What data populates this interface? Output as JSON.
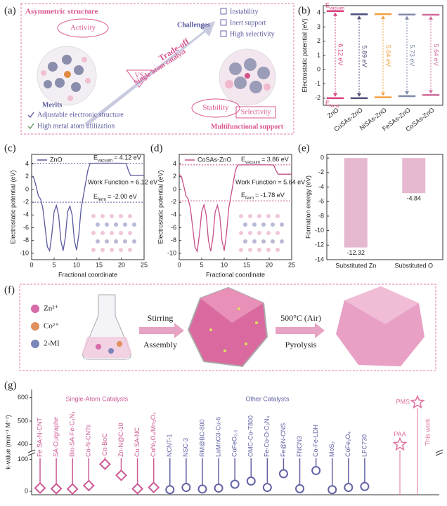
{
  "panels": {
    "a": {
      "label": "(a)",
      "heading": "Asymmetric structure",
      "activity": "Activity",
      "vs": "VS",
      "tradeoff": "Trade-off",
      "catalyst": "Single atom catalyst",
      "challenges_title": "Challenges",
      "challenges": [
        "Instability",
        "Inert support",
        "High selectivity"
      ],
      "stability": "Stability",
      "selectivity": "Selectivity",
      "merits_title": "Merits",
      "merits": [
        "Adjustable electronic structure",
        "High metal atom utilization"
      ],
      "support": "Multifunctional support"
    },
    "f": {
      "label": "(f)",
      "ions": [
        "Zn²⁺",
        "Co²⁺",
        "2-MI"
      ],
      "step1": [
        "Stirring",
        "Assembly"
      ],
      "step2": [
        "500°C (Air)",
        "Pyrolysis"
      ]
    }
  },
  "chart_data": [
    {
      "type": "level",
      "panel_label": "(b)",
      "y_label": "Electrostatic potential (eV)",
      "categories": [
        "ZnO",
        "CuSAs-ZnO",
        "NiSAs-ZnO",
        "FeSAs-ZnO",
        "CoSAs-ZnO"
      ],
      "colors": [
        "#d8407e",
        "#4d4d7a",
        "#f0a040",
        "#7e8aa8",
        "#d06a9c"
      ],
      "vacuum_level": [
        4.12,
        3.89,
        3.9,
        3.87,
        3.86
      ],
      "fermi_level": [
        -2.0,
        -2.0,
        -1.94,
        -1.86,
        -1.78
      ],
      "work_function": {
        "values": [
          6.12,
          5.89,
          5.84,
          5.73,
          5.64
        ],
        "value_labels": [
          "6.12 eV",
          "5.89 eV",
          "5.84 eV",
          "5.73 eV",
          "5.64 eV"
        ]
      },
      "level_labels": {
        "vacuum": {
          "symbol": "E",
          "sub": "vacuum"
        },
        "fermi": {
          "symbol": "E",
          "sub": "fermi"
        }
      },
      "ylim": [
        -2.5,
        4.5
      ],
      "yticks": [
        -2,
        -1,
        0,
        1,
        2,
        3,
        4
      ]
    },
    {
      "type": "line",
      "panel_label": "(c)",
      "x_label": "Fractional coordinate",
      "y_label": "Electrostatic potential (eV)",
      "x": [
        0,
        0.5,
        1,
        1.5,
        2,
        2.5,
        3,
        3.5,
        4,
        4.5,
        5,
        5.5,
        6,
        6.5,
        7,
        7.5,
        8,
        8.5,
        9,
        9.5,
        10,
        10.5,
        11,
        11.5,
        12,
        12.5,
        13,
        14,
        15,
        16,
        17,
        18,
        19,
        20,
        21,
        21.5,
        22,
        23,
        24,
        25
      ],
      "series": [
        {
          "name": "ZnO",
          "color": "#5a5a9e",
          "values": [
            2.2,
            1.8,
            0.5,
            -1,
            -1.5,
            -3,
            -6,
            -9,
            -9.6,
            -7,
            -3.5,
            -2.5,
            -4,
            -8,
            -9.6,
            -7.5,
            -3.5,
            -2.6,
            -4,
            -8,
            -9.5,
            -7,
            -3,
            -1,
            1,
            3,
            4.1,
            4.12,
            4.12,
            4.12,
            4.12,
            4.12,
            4.12,
            4.12,
            4.1,
            3,
            2.2,
            2.2,
            2.2,
            2.2
          ]
        }
      ],
      "reference_lines": [
        4.12,
        -2.0
      ],
      "annotations": [
        {
          "symbol": "E",
          "sub": "vacuum",
          "text": "= 4.12 eV"
        },
        {
          "text": "Work Function = 6.12 eV"
        },
        {
          "symbol": "E",
          "sub": "ferm",
          "text": "= -2.00 eV"
        }
      ],
      "xlim": [
        0,
        25
      ],
      "xticks": [
        0,
        5,
        10,
        15,
        20,
        25
      ],
      "ylim": [
        -11,
        5.5
      ],
      "yticks": [
        -10,
        -8,
        -6,
        -4,
        -2,
        0,
        2,
        4
      ]
    },
    {
      "type": "line",
      "panel_label": "(d)",
      "x_label": "Fractional coordinate",
      "y_label": "Electrostatic potential (eV)",
      "x": [
        0,
        0.5,
        1,
        1.5,
        2,
        2.5,
        3,
        3.5,
        4,
        4.5,
        5,
        5.5,
        6,
        6.5,
        7,
        7.5,
        8,
        8.5,
        9,
        9.5,
        10,
        10.5,
        11,
        11.5,
        12,
        12.5,
        13,
        14,
        15,
        16,
        17,
        18,
        19,
        20,
        21,
        21.5,
        22,
        23,
        24,
        25
      ],
      "series": [
        {
          "name": "CoSAs-ZnO",
          "color": "#c8508a",
          "values": [
            2.4,
            2.0,
            0.6,
            -1,
            -1.5,
            -3,
            -6,
            -9,
            -9.7,
            -7,
            -3.5,
            -2.4,
            -4,
            -8,
            -9.7,
            -7.5,
            -3.5,
            -2.5,
            -4,
            -8,
            -9.6,
            -7,
            -3,
            -1,
            1,
            3,
            3.84,
            3.86,
            3.86,
            3.86,
            3.86,
            3.86,
            3.86,
            3.86,
            3.84,
            3,
            2.4,
            2.4,
            2.4,
            2.4
          ]
        }
      ],
      "reference_lines": [
        3.86,
        -1.78
      ],
      "annotations": [
        {
          "symbol": "E",
          "sub": "vacuum",
          "text": "= 3.86 eV"
        },
        {
          "text": "Work Function = 5.64 eV"
        },
        {
          "symbol": "E",
          "sub": "ferm",
          "text": "= -1.78 eV"
        }
      ],
      "xlim": [
        0,
        25
      ],
      "xticks": [
        0,
        5,
        10,
        15,
        20,
        25
      ],
      "ylim": [
        -11,
        5.5
      ],
      "yticks": [
        -10,
        -8,
        -6,
        -4,
        -2,
        0,
        2,
        4
      ]
    },
    {
      "type": "bar",
      "panel_label": "(e)",
      "y_label": "Formation energy (eV)",
      "categories": [
        "Substituted Zn",
        "Substituted O"
      ],
      "values": [
        -12.32,
        -4.84
      ],
      "color": "#e6b8d0",
      "ylim": [
        -14,
        0.5
      ],
      "yticks": [
        -14,
        -12,
        -10,
        -8,
        -6,
        -4,
        -2,
        0
      ]
    },
    {
      "type": "lollipop",
      "panel_label": "(g)",
      "y_label": "k-value (min⁻¹ M⁻¹)",
      "side_label": "This work",
      "series": [
        {
          "name": "Single-Atom Catalysts",
          "color": "#cc5a94",
          "marker": "diamond",
          "categories": [
            "Fe SA-N-CNT",
            "SA-Cu/graphe",
            "Bio-SA-Fe-C₃N₄",
            "Co-N-CNTs",
            "Co-BoC",
            "Zn-N@C-10",
            "Cu SA-NC",
            "CoNi₂O₄/Mn₃O₄"
          ],
          "values": [
            10,
            8,
            7,
            18,
            85,
            50,
            8,
            12
          ]
        },
        {
          "name": "Other Catalysts",
          "color": "#6262a6",
          "marker": "circle",
          "categories": [
            "NCNT-1",
            "NSC-3",
            "RM@BC-800",
            "LaMnO3-Cu-6",
            "CoFeO₂.₅",
            "OMC-Co-T800",
            "Fe-Co-O-C₃N₄",
            "Fe@N-CNS",
            "FNCN3",
            "Co-Fe-LDH",
            "MoS₂",
            "CoFe₂O₄",
            "LFC730"
          ],
          "values": [
            5,
            12,
            7,
            10,
            22,
            32,
            12,
            55,
            8,
            65,
            5,
            12,
            15
          ]
        },
        {
          "color": "#e0709f",
          "marker": "star",
          "categories": [
            "PAA",
            "PMS"
          ],
          "values": [
            400,
            580
          ]
        }
      ],
      "ylim": [
        0,
        620
      ],
      "y_break": [
        110,
        380
      ],
      "yticks": [
        0,
        100,
        400,
        500,
        600
      ]
    }
  ]
}
